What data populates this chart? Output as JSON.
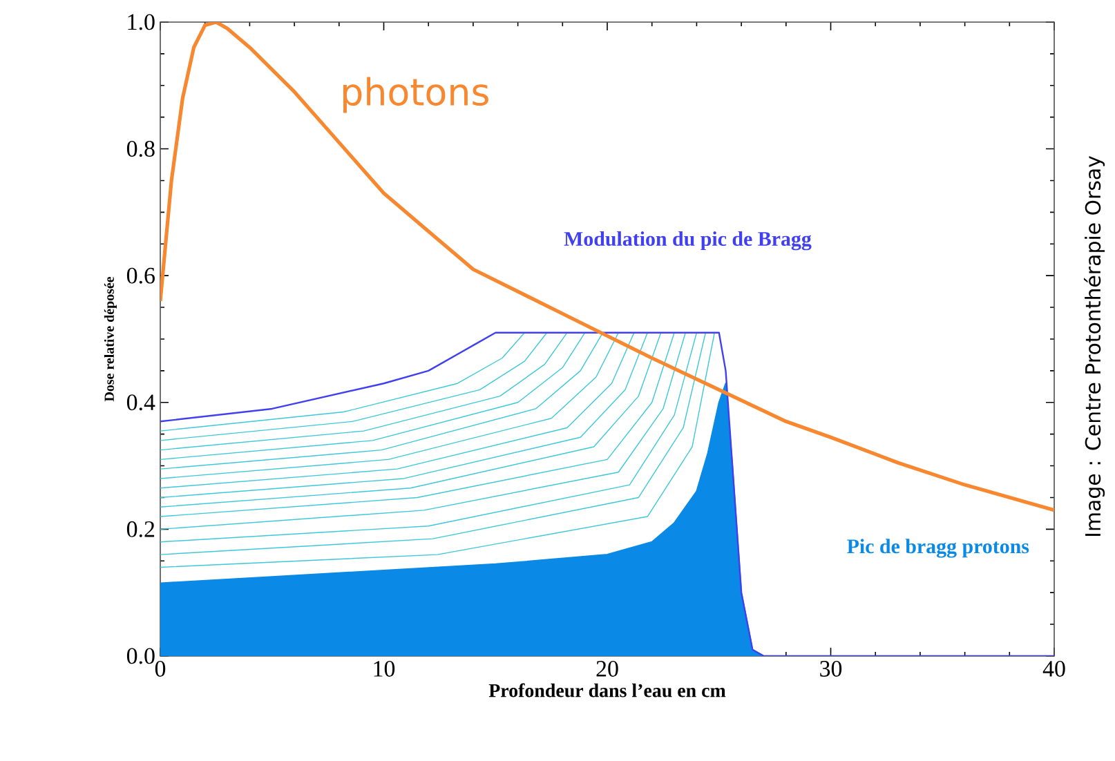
{
  "chart_data": {
    "type": "line",
    "xlabel": "Profondeur dans l’eau en cm",
    "ylabel": "Dose relative déposée",
    "xlim": [
      0,
      40
    ],
    "xticks": [
      0,
      10,
      20,
      30,
      40
    ],
    "ylim": [
      0,
      1.0
    ],
    "yticks": [
      {
        "value": 0,
        "label": "0.0"
      },
      {
        "value": 0.2,
        "label": "0.2"
      },
      {
        "value": 0.4,
        "label": "0.4"
      },
      {
        "value": 0.6,
        "label": "0.6"
      },
      {
        "value": 0.8,
        "label": "0.8"
      },
      {
        "value": 1.0,
        "label": "1.0"
      }
    ],
    "grid": false,
    "marker": "none",
    "line_style": "solid",
    "annotations": [
      "Image : Centre Protonthérapie Orsay"
    ],
    "series": [
      {
        "type": "line",
        "color": "#3cc8d8",
        "x": [
          0,
          12.4,
          21.8,
          23.8,
          24.8
        ],
        "values": [
          0.14,
          0.16,
          0.22,
          0.33,
          0.51
        ]
      },
      {
        "type": "line",
        "color": "#3cc8d8",
        "x": [
          0,
          12.2,
          21.4,
          23.4,
          24.4
        ],
        "values": [
          0.16,
          0.185,
          0.25,
          0.36,
          0.51
        ]
      },
      {
        "type": "line",
        "color": "#3cc8d8",
        "x": [
          0,
          12,
          21,
          23,
          24.0
        ],
        "values": [
          0.18,
          0.205,
          0.27,
          0.38,
          0.51
        ]
      },
      {
        "type": "line",
        "color": "#3cc8d8",
        "x": [
          0,
          11.8,
          20.5,
          22.5,
          23.5
        ],
        "values": [
          0.2,
          0.23,
          0.29,
          0.39,
          0.51
        ]
      },
      {
        "type": "line",
        "color": "#3cc8d8",
        "x": [
          0,
          11.5,
          20,
          22,
          23.0
        ],
        "values": [
          0.22,
          0.25,
          0.31,
          0.4,
          0.51
        ]
      },
      {
        "type": "line",
        "color": "#3cc8d8",
        "x": [
          0,
          11.2,
          19.4,
          21.4,
          22.4
        ],
        "values": [
          0.235,
          0.265,
          0.33,
          0.41,
          0.51
        ]
      },
      {
        "type": "line",
        "color": "#3cc8d8",
        "x": [
          0,
          10.9,
          18.8,
          20.8,
          21.8
        ],
        "values": [
          0.25,
          0.28,
          0.345,
          0.42,
          0.51
        ]
      },
      {
        "type": "line",
        "color": "#3cc8d8",
        "x": [
          0,
          10.6,
          18.2,
          20.2,
          21.2
        ],
        "values": [
          0.265,
          0.295,
          0.36,
          0.43,
          0.51
        ]
      },
      {
        "type": "line",
        "color": "#3cc8d8",
        "x": [
          0,
          10.2,
          17.5,
          19.5,
          20.5
        ],
        "values": [
          0.28,
          0.31,
          0.375,
          0.44,
          0.51
        ]
      },
      {
        "type": "line",
        "color": "#3cc8d8",
        "x": [
          0,
          9.9,
          16.8,
          18.8,
          19.8
        ],
        "values": [
          0.295,
          0.325,
          0.39,
          0.45,
          0.51
        ]
      },
      {
        "type": "line",
        "color": "#3cc8d8",
        "x": [
          0,
          9.5,
          16,
          18,
          19.0
        ],
        "values": [
          0.31,
          0.34,
          0.4,
          0.455,
          0.51
        ]
      },
      {
        "type": "line",
        "color": "#3cc8d8",
        "x": [
          0,
          9.1,
          15.2,
          17.2,
          18.2
        ],
        "values": [
          0.325,
          0.355,
          0.41,
          0.46,
          0.51
        ]
      },
      {
        "type": "line",
        "color": "#3cc8d8",
        "x": [
          0,
          8.6,
          14.3,
          16.3,
          17.3
        ],
        "values": [
          0.34,
          0.37,
          0.42,
          0.465,
          0.51
        ]
      },
      {
        "type": "line",
        "color": "#3cc8d8",
        "x": [
          0,
          8.2,
          13.3,
          15.3,
          16.3
        ],
        "values": [
          0.355,
          0.385,
          0.43,
          0.47,
          0.51
        ]
      },
      {
        "type": "area",
        "name": "Pic de bragg protons",
        "color": "#0a8ae6",
        "x": [
          0,
          5,
          10,
          15,
          20,
          22,
          23,
          24,
          24.5,
          25,
          25.3,
          25.6,
          26,
          26.5,
          27,
          40
        ],
        "values": [
          0.115,
          0.125,
          0.135,
          0.145,
          0.16,
          0.18,
          0.21,
          0.26,
          0.32,
          0.4,
          0.43,
          0.3,
          0.1,
          0.01,
          0,
          0
        ]
      },
      {
        "name": "Modulation du pic de Bragg",
        "color": "#4040f0",
        "x": [
          0,
          5,
          10,
          12,
          13,
          14,
          15,
          20,
          25,
          25.3,
          25.6,
          26,
          26.5,
          27,
          40
        ],
        "values": [
          0.37,
          0.39,
          0.43,
          0.45,
          0.47,
          0.49,
          0.51,
          0.51,
          0.51,
          0.45,
          0.3,
          0.1,
          0.01,
          0,
          0
        ]
      },
      {
        "name": "photons",
        "color": "#f7882f",
        "x": [
          0,
          0.5,
          1,
          1.5,
          2,
          2.5,
          3,
          4,
          6,
          8,
          10,
          12,
          14,
          16,
          18,
          20,
          22,
          25,
          28,
          30,
          33,
          36,
          40
        ],
        "values": [
          0.56,
          0.75,
          0.88,
          0.96,
          0.995,
          1.0,
          0.99,
          0.96,
          0.89,
          0.81,
          0.73,
          0.67,
          0.61,
          0.575,
          0.54,
          0.505,
          0.47,
          0.42,
          0.37,
          0.345,
          0.305,
          0.27,
          0.23
        ]
      }
    ]
  }
}
